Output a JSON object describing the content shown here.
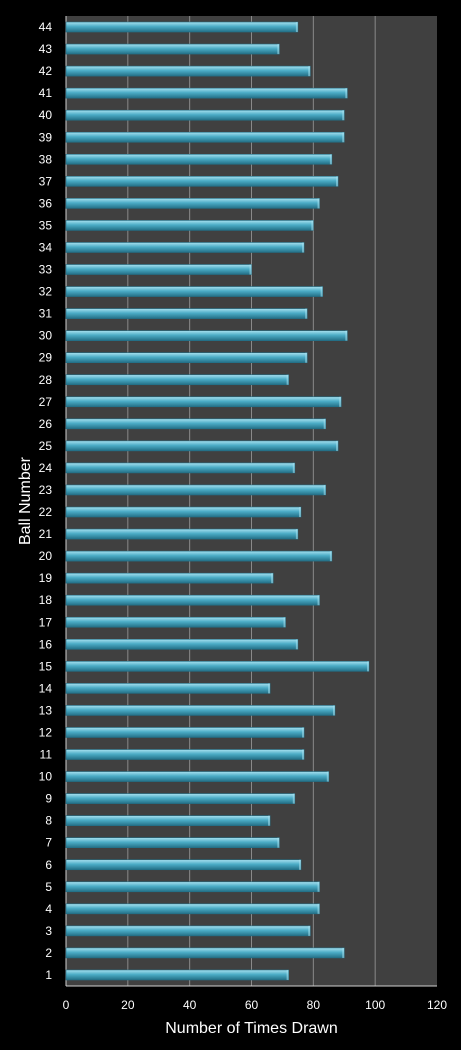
{
  "chart_data": {
    "type": "bar",
    "orientation": "horizontal",
    "categories": [
      "1",
      "2",
      "3",
      "4",
      "5",
      "6",
      "7",
      "8",
      "9",
      "10",
      "11",
      "12",
      "13",
      "14",
      "15",
      "16",
      "17",
      "18",
      "19",
      "20",
      "21",
      "22",
      "23",
      "24",
      "25",
      "26",
      "27",
      "28",
      "29",
      "30",
      "31",
      "32",
      "33",
      "34",
      "35",
      "36",
      "37",
      "38",
      "39",
      "40",
      "41",
      "42",
      "43",
      "44"
    ],
    "values": [
      72,
      90,
      79,
      82,
      82,
      76,
      69,
      66,
      74,
      85,
      77,
      77,
      87,
      66,
      98,
      75,
      71,
      82,
      67,
      86,
      75,
      76,
      84,
      74,
      88,
      84,
      89,
      72,
      78,
      91,
      78,
      83,
      60,
      77,
      80,
      82,
      88,
      86,
      90,
      90,
      91,
      79,
      69,
      75
    ],
    "xlabel": "Number of Times Drawn",
    "ylabel": "Ball Number",
    "xlim": [
      0,
      120
    ],
    "xticks": [
      "0",
      "20",
      "40",
      "60",
      "80",
      "100",
      "120"
    ],
    "grid": "vertical",
    "colors": {
      "plot_background": "#404040",
      "page_background": "#000000",
      "bar_fill": "#4bacc6",
      "bar_highlight": "#a8e1f0",
      "bar_shadow": "#236f86",
      "gridline": "#8a8a8a",
      "text": "#ffffff"
    }
  }
}
